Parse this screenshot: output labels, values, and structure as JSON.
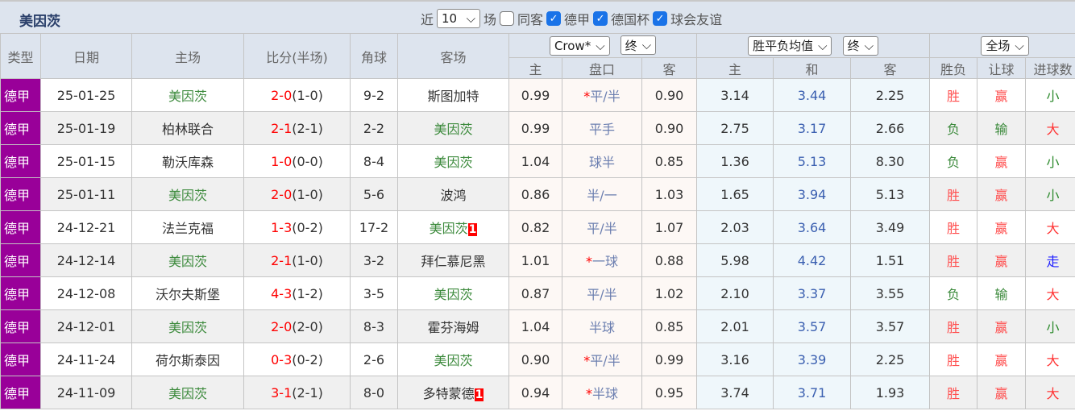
{
  "team": "美因茨",
  "filters": {
    "near": "近",
    "count": "10",
    "unit": "场",
    "same_away": "同客",
    "same_away_checked": false,
    "leagues": [
      {
        "label": "德甲",
        "checked": true
      },
      {
        "label": "德国杯",
        "checked": true
      },
      {
        "label": "球会友谊",
        "checked": true
      }
    ]
  },
  "headers": {
    "type": "类型",
    "date": "日期",
    "home": "主场",
    "score": "比分(半场)",
    "corner": "角球",
    "away": "客场",
    "company": "Crow*",
    "final1": "终",
    "avg": "胜平负均值",
    "final2": "终",
    "scope": "全场",
    "sub": [
      "主",
      "盘口",
      "客",
      "主",
      "和",
      "客",
      "胜负",
      "让球",
      "进球数"
    ]
  },
  "rows": [
    {
      "type": "德甲",
      "date": "25-01-25",
      "home": "美因茨",
      "score": "2-0",
      "half": "(1-0)",
      "corner": "9-2",
      "away": "斯图加特",
      "card": "",
      "h": "0.99",
      "star": true,
      "line": "平/半",
      "a": "0.90",
      "w": "3.14",
      "d": "3.44",
      "l": "2.25",
      "r1": "胜",
      "r2": "赢",
      "r3": "小"
    },
    {
      "type": "德甲",
      "date": "25-01-19",
      "home": "柏林联合",
      "score": "2-1",
      "half": "(2-1)",
      "corner": "2-2",
      "away": "美因茨",
      "card": "",
      "h": "0.99",
      "star": false,
      "line": "平手",
      "a": "0.90",
      "w": "2.75",
      "d": "3.17",
      "l": "2.66",
      "r1": "负",
      "r2": "输",
      "r3": "大"
    },
    {
      "type": "德甲",
      "date": "25-01-15",
      "home": "勒沃库森",
      "score": "1-0",
      "half": "(0-0)",
      "corner": "8-4",
      "away": "美因茨",
      "card": "",
      "h": "1.04",
      "star": false,
      "line": "球半",
      "a": "0.85",
      "w": "1.36",
      "d": "5.13",
      "l": "8.30",
      "r1": "负",
      "r2": "赢",
      "r3": "小"
    },
    {
      "type": "德甲",
      "date": "25-01-11",
      "home": "美因茨",
      "score": "2-0",
      "half": "(1-0)",
      "corner": "5-6",
      "away": "波鸿",
      "card": "",
      "h": "0.86",
      "star": false,
      "line": "半/一",
      "a": "1.03",
      "w": "1.65",
      "d": "3.94",
      "l": "5.13",
      "r1": "胜",
      "r2": "赢",
      "r3": "小"
    },
    {
      "type": "德甲",
      "date": "24-12-21",
      "home": "法兰克福",
      "score": "1-3",
      "half": "(0-2)",
      "corner": "17-2",
      "away": "美因茨",
      "card": "1",
      "h": "0.82",
      "star": false,
      "line": "平/半",
      "a": "1.07",
      "w": "2.03",
      "d": "3.64",
      "l": "3.49",
      "r1": "胜",
      "r2": "赢",
      "r3": "大"
    },
    {
      "type": "德甲",
      "date": "24-12-14",
      "home": "美因茨",
      "score": "2-1",
      "half": "(1-0)",
      "corner": "3-2",
      "away": "拜仁慕尼黑",
      "card": "",
      "h": "1.01",
      "star": true,
      "line": "一球",
      "a": "0.88",
      "w": "5.98",
      "d": "4.42",
      "l": "1.51",
      "r1": "胜",
      "r2": "赢",
      "r3": "走"
    },
    {
      "type": "德甲",
      "date": "24-12-08",
      "home": "沃尔夫斯堡",
      "score": "4-3",
      "half": "(1-2)",
      "corner": "3-5",
      "away": "美因茨",
      "card": "",
      "h": "0.87",
      "star": false,
      "line": "平/半",
      "a": "1.02",
      "w": "2.10",
      "d": "3.37",
      "l": "3.55",
      "r1": "负",
      "r2": "输",
      "r3": "大"
    },
    {
      "type": "德甲",
      "date": "24-12-01",
      "home": "美因茨",
      "score": "2-0",
      "half": "(2-0)",
      "corner": "8-3",
      "away": "霍芬海姆",
      "card": "",
      "h": "1.04",
      "star": false,
      "line": "半球",
      "a": "0.85",
      "w": "2.01",
      "d": "3.57",
      "l": "3.57",
      "r1": "胜",
      "r2": "赢",
      "r3": "小"
    },
    {
      "type": "德甲",
      "date": "24-11-24",
      "home": "荷尔斯泰因",
      "score": "0-3",
      "half": "(0-2)",
      "corner": "2-6",
      "away": "美因茨",
      "card": "",
      "h": "0.90",
      "star": true,
      "line": "平/半",
      "a": "0.99",
      "w": "3.16",
      "d": "3.39",
      "l": "2.25",
      "r1": "胜",
      "r2": "赢",
      "r3": "大"
    },
    {
      "type": "德甲",
      "date": "24-11-09",
      "home": "美因茨",
      "score": "3-1",
      "half": "(2-1)",
      "corner": "8-0",
      "away": "多特蒙德",
      "card": "1",
      "h": "0.94",
      "star": true,
      "line": "半球",
      "a": "0.95",
      "w": "3.74",
      "d": "3.71",
      "l": "1.93",
      "r1": "胜",
      "r2": "赢",
      "r3": "大"
    }
  ],
  "colors": {
    "league": "#990099",
    "win": "#ff4d4d",
    "lose": "#3c8a3c",
    "walk": "#2222ff"
  }
}
